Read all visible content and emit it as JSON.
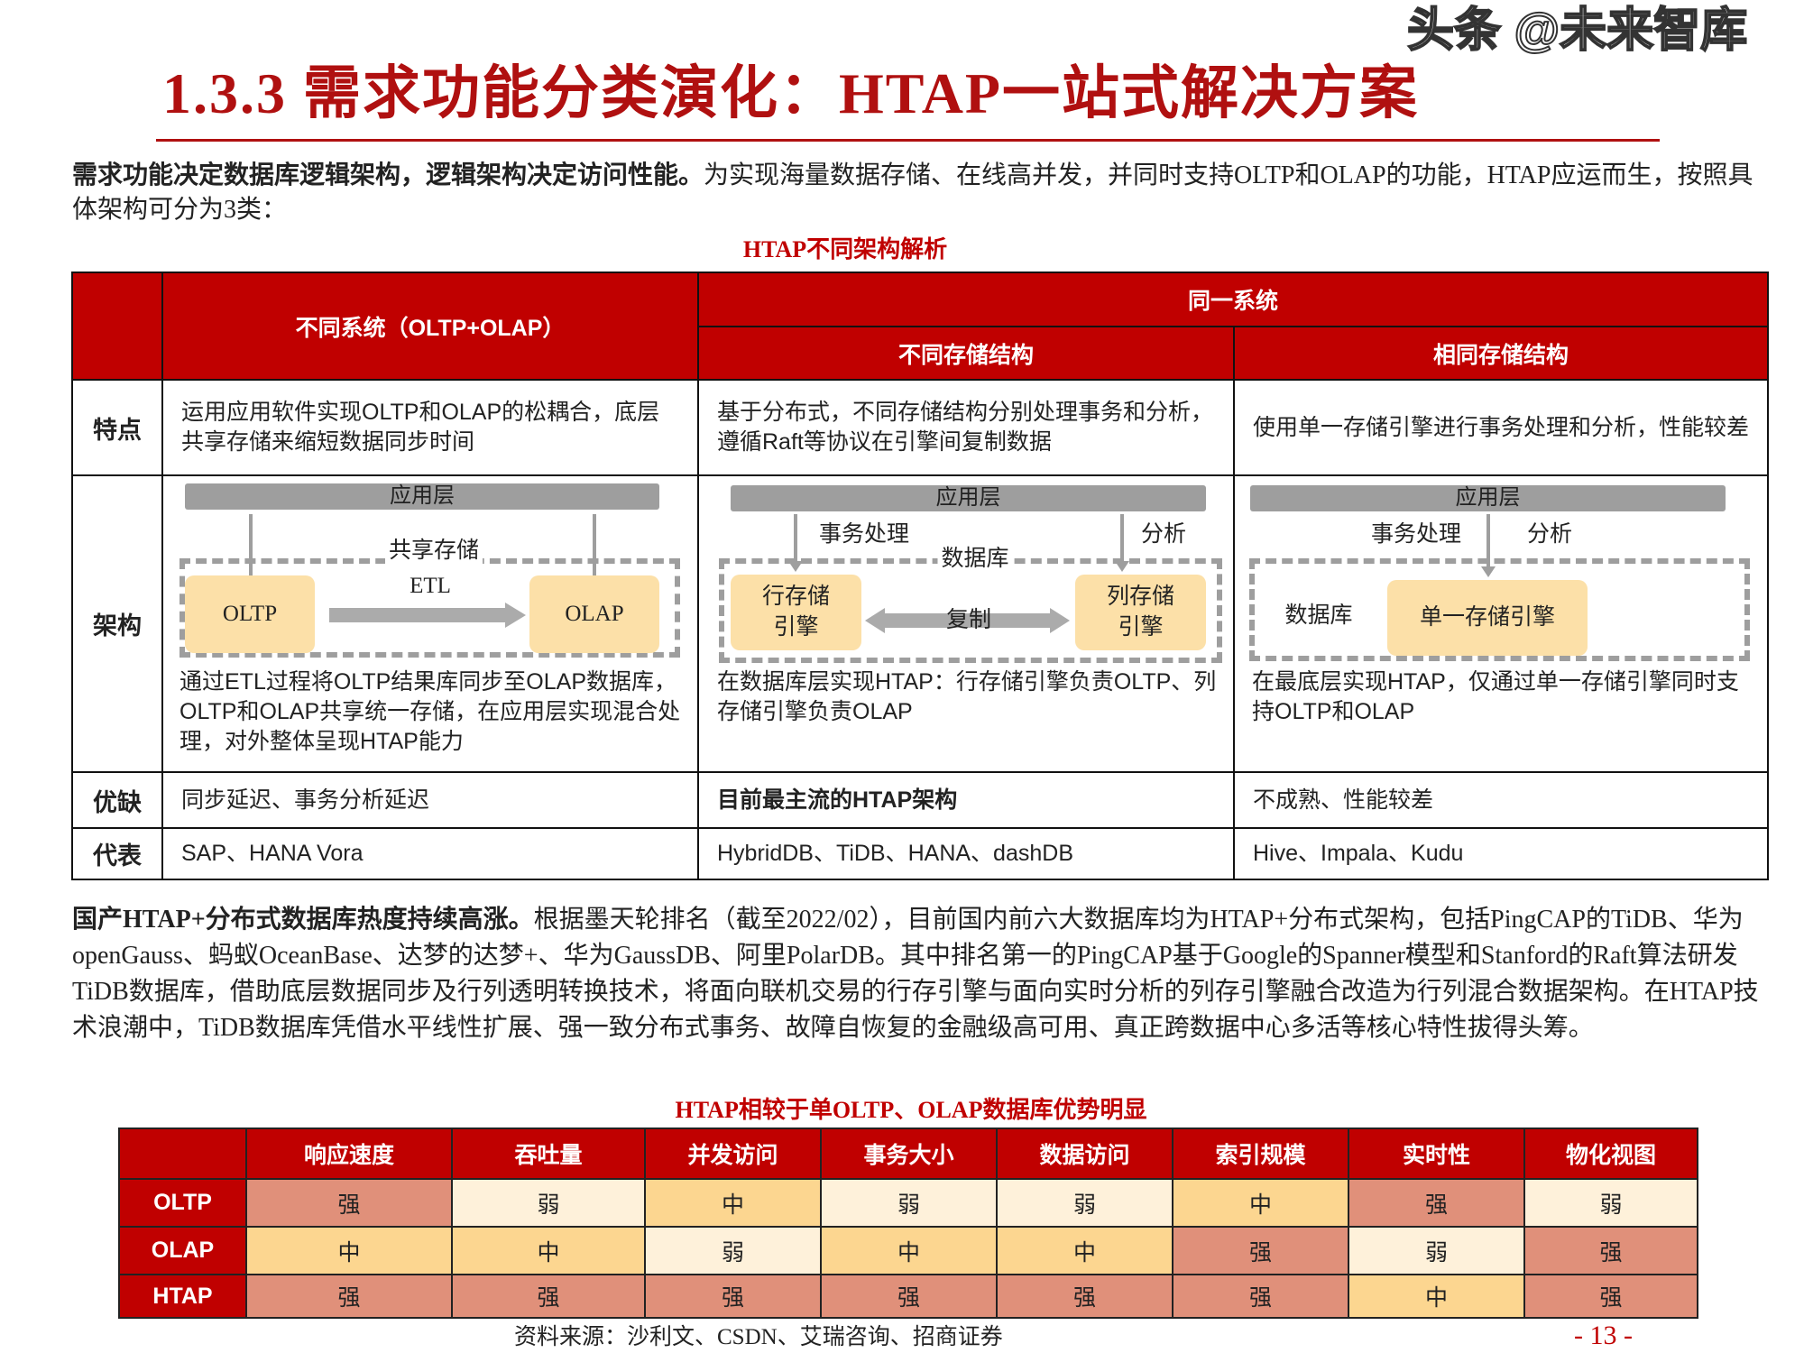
{
  "title": "1.3.3 需求功能分类演化：HTAP一站式解决方案",
  "intro": {
    "bold": "需求功能决定数据库逻辑架构，逻辑架构决定访问性能。",
    "text": "为实现海量数据存储、在线高并发，并同时支持OLTP和OLAP的功能，HTAP应运而生，按照具体架构可分为3类："
  },
  "table1": {
    "caption": "HTAP不同架构解析",
    "header": {
      "col1": "不同系统（OLTP+OLAP）",
      "same": "同一系统",
      "col2": "不同存储结构",
      "col3": "相同存储结构"
    },
    "rows": {
      "features": {
        "label": "特点",
        "c1": "运用应用软件实现OLTP和OLAP的松耦合，底层共享存储来缩短数据同步时间",
        "c2": "基于分布式，不同存储结构分别处理事务和分析，遵循Raft等协议在引擎间复制数据",
        "c3": "使用单一存储引擎进行事务处理和分析，性能较差"
      },
      "arch": {
        "label": "架构",
        "c1": {
          "app": "应用层",
          "storage": "共享存储",
          "etl": "ETL",
          "oltp": "OLTP",
          "olap": "OLAP",
          "desc": "通过ETL过程将OLTP结果库同步至OLAP数据库，OLTP和OLAP共享统一存储，在应用层实现混合处理，对外整体呈现HTAP能力"
        },
        "c2": {
          "app": "应用层",
          "tx": "事务处理",
          "an": "分析",
          "db": "数据库",
          "row": "行存储引擎",
          "col": "列存储引擎",
          "rep": "复制",
          "desc": "在数据库层实现HTAP：行存储引擎负责OLTP、列存储引擎负责OLAP"
        },
        "c3": {
          "app": "应用层",
          "tx": "事务处理",
          "an": "分析",
          "db": "数据库",
          "single": "单一存储引擎",
          "desc": "在最底层实现HTAP，仅通过单一存储引擎同时支持OLTP和OLAP"
        }
      },
      "pros": {
        "label": "优缺",
        "c1": "同步延迟、事务分析延迟",
        "c2": "目前最主流的HTAP架构",
        "c3": "不成熟、性能较差"
      },
      "reps": {
        "label": "代表",
        "c1": "SAP、HANA Vora",
        "c2": "HybridDB、TiDB、HANA、dashDB",
        "c3": "Hive、Impala、Kudu"
      }
    }
  },
  "para2": {
    "bold": "国产HTAP+分布式数据库热度持续高涨。",
    "text": "根据墨天轮排名（截至2022/02），目前国内前六大数据库均为HTAP+分布式架构，包括PingCAP的TiDB、华为openGauss、蚂蚁OceanBase、达梦的达梦+、华为GaussDB、阿里PolarDB。其中排名第一的PingCAP基于Google的Spanner模型和Stanford的Raft算法研发TiDB数据库，借助底层数据同步及行列透明转换技术，将面向联机交易的行存引擎与面向实时分析的列存引擎融合改造为行列混合数据架构。在HTAP技术浪潮中，TiDB数据库凭借水平线性扩展、强一致分布式事务、故障自恢复的金融级高可用、真正跨数据中心多活等核心特性拔得头筹。"
  },
  "table2": {
    "caption": "HTAP相较于单OLTP、OLAP数据库优势明显",
    "columns": [
      "响应速度",
      "吞吐量",
      "并发访问",
      "事务大小",
      "数据访问",
      "索引规模",
      "实时性",
      "物化视图"
    ],
    "rows": [
      {
        "name": "OLTP",
        "values": [
          "强",
          "弱",
          "中",
          "弱",
          "弱",
          "中",
          "强",
          "弱"
        ]
      },
      {
        "name": "OLAP",
        "values": [
          "中",
          "中",
          "弱",
          "中",
          "中",
          "强",
          "弱",
          "强"
        ]
      },
      {
        "name": "HTAP",
        "values": [
          "强",
          "强",
          "强",
          "强",
          "强",
          "强",
          "中",
          "强"
        ]
      }
    ],
    "level_colors": {
      "强": "#E0907A",
      "中": "#FCD690",
      "弱": "#FEF1DA"
    }
  },
  "source": "资料来源：沙利文、CSDN、艾瑞咨询、招商证券",
  "page_number": "- 13 -",
  "watermark": "头条 @未来智库"
}
